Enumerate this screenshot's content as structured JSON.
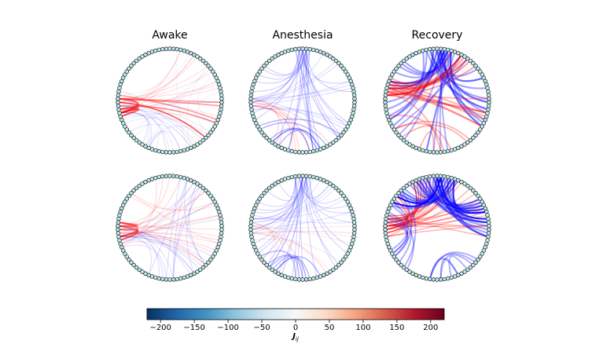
{
  "columns": [
    {
      "title": "Awake"
    },
    {
      "title": "Anesthesia"
    },
    {
      "title": "Recovery"
    }
  ],
  "rows": 2,
  "nodes_per_circle": 90,
  "colorbar": {
    "label_main": "J",
    "label_sub": "ij",
    "range": [
      -220,
      220
    ],
    "ticks": [
      -200,
      -150,
      -100,
      -50,
      0,
      50,
      100,
      150,
      200
    ],
    "tick_labels": [
      "−200",
      "−150",
      "−100",
      "−50",
      "0",
      "50",
      "100",
      "150",
      "200"
    ]
  },
  "colors": {
    "positive": "#ff0000",
    "negative": "#0000ff",
    "node_fill": "#bde7ea",
    "node_edge": "#000000",
    "ring": "#000000",
    "cmap_stops": [
      "#053061",
      "#2166ac",
      "#4393c3",
      "#92c5de",
      "#d1e5f0",
      "#f7f7f7",
      "#fddbc7",
      "#f4a582",
      "#d6604d",
      "#b2182b",
      "#67001f"
    ]
  }
}
